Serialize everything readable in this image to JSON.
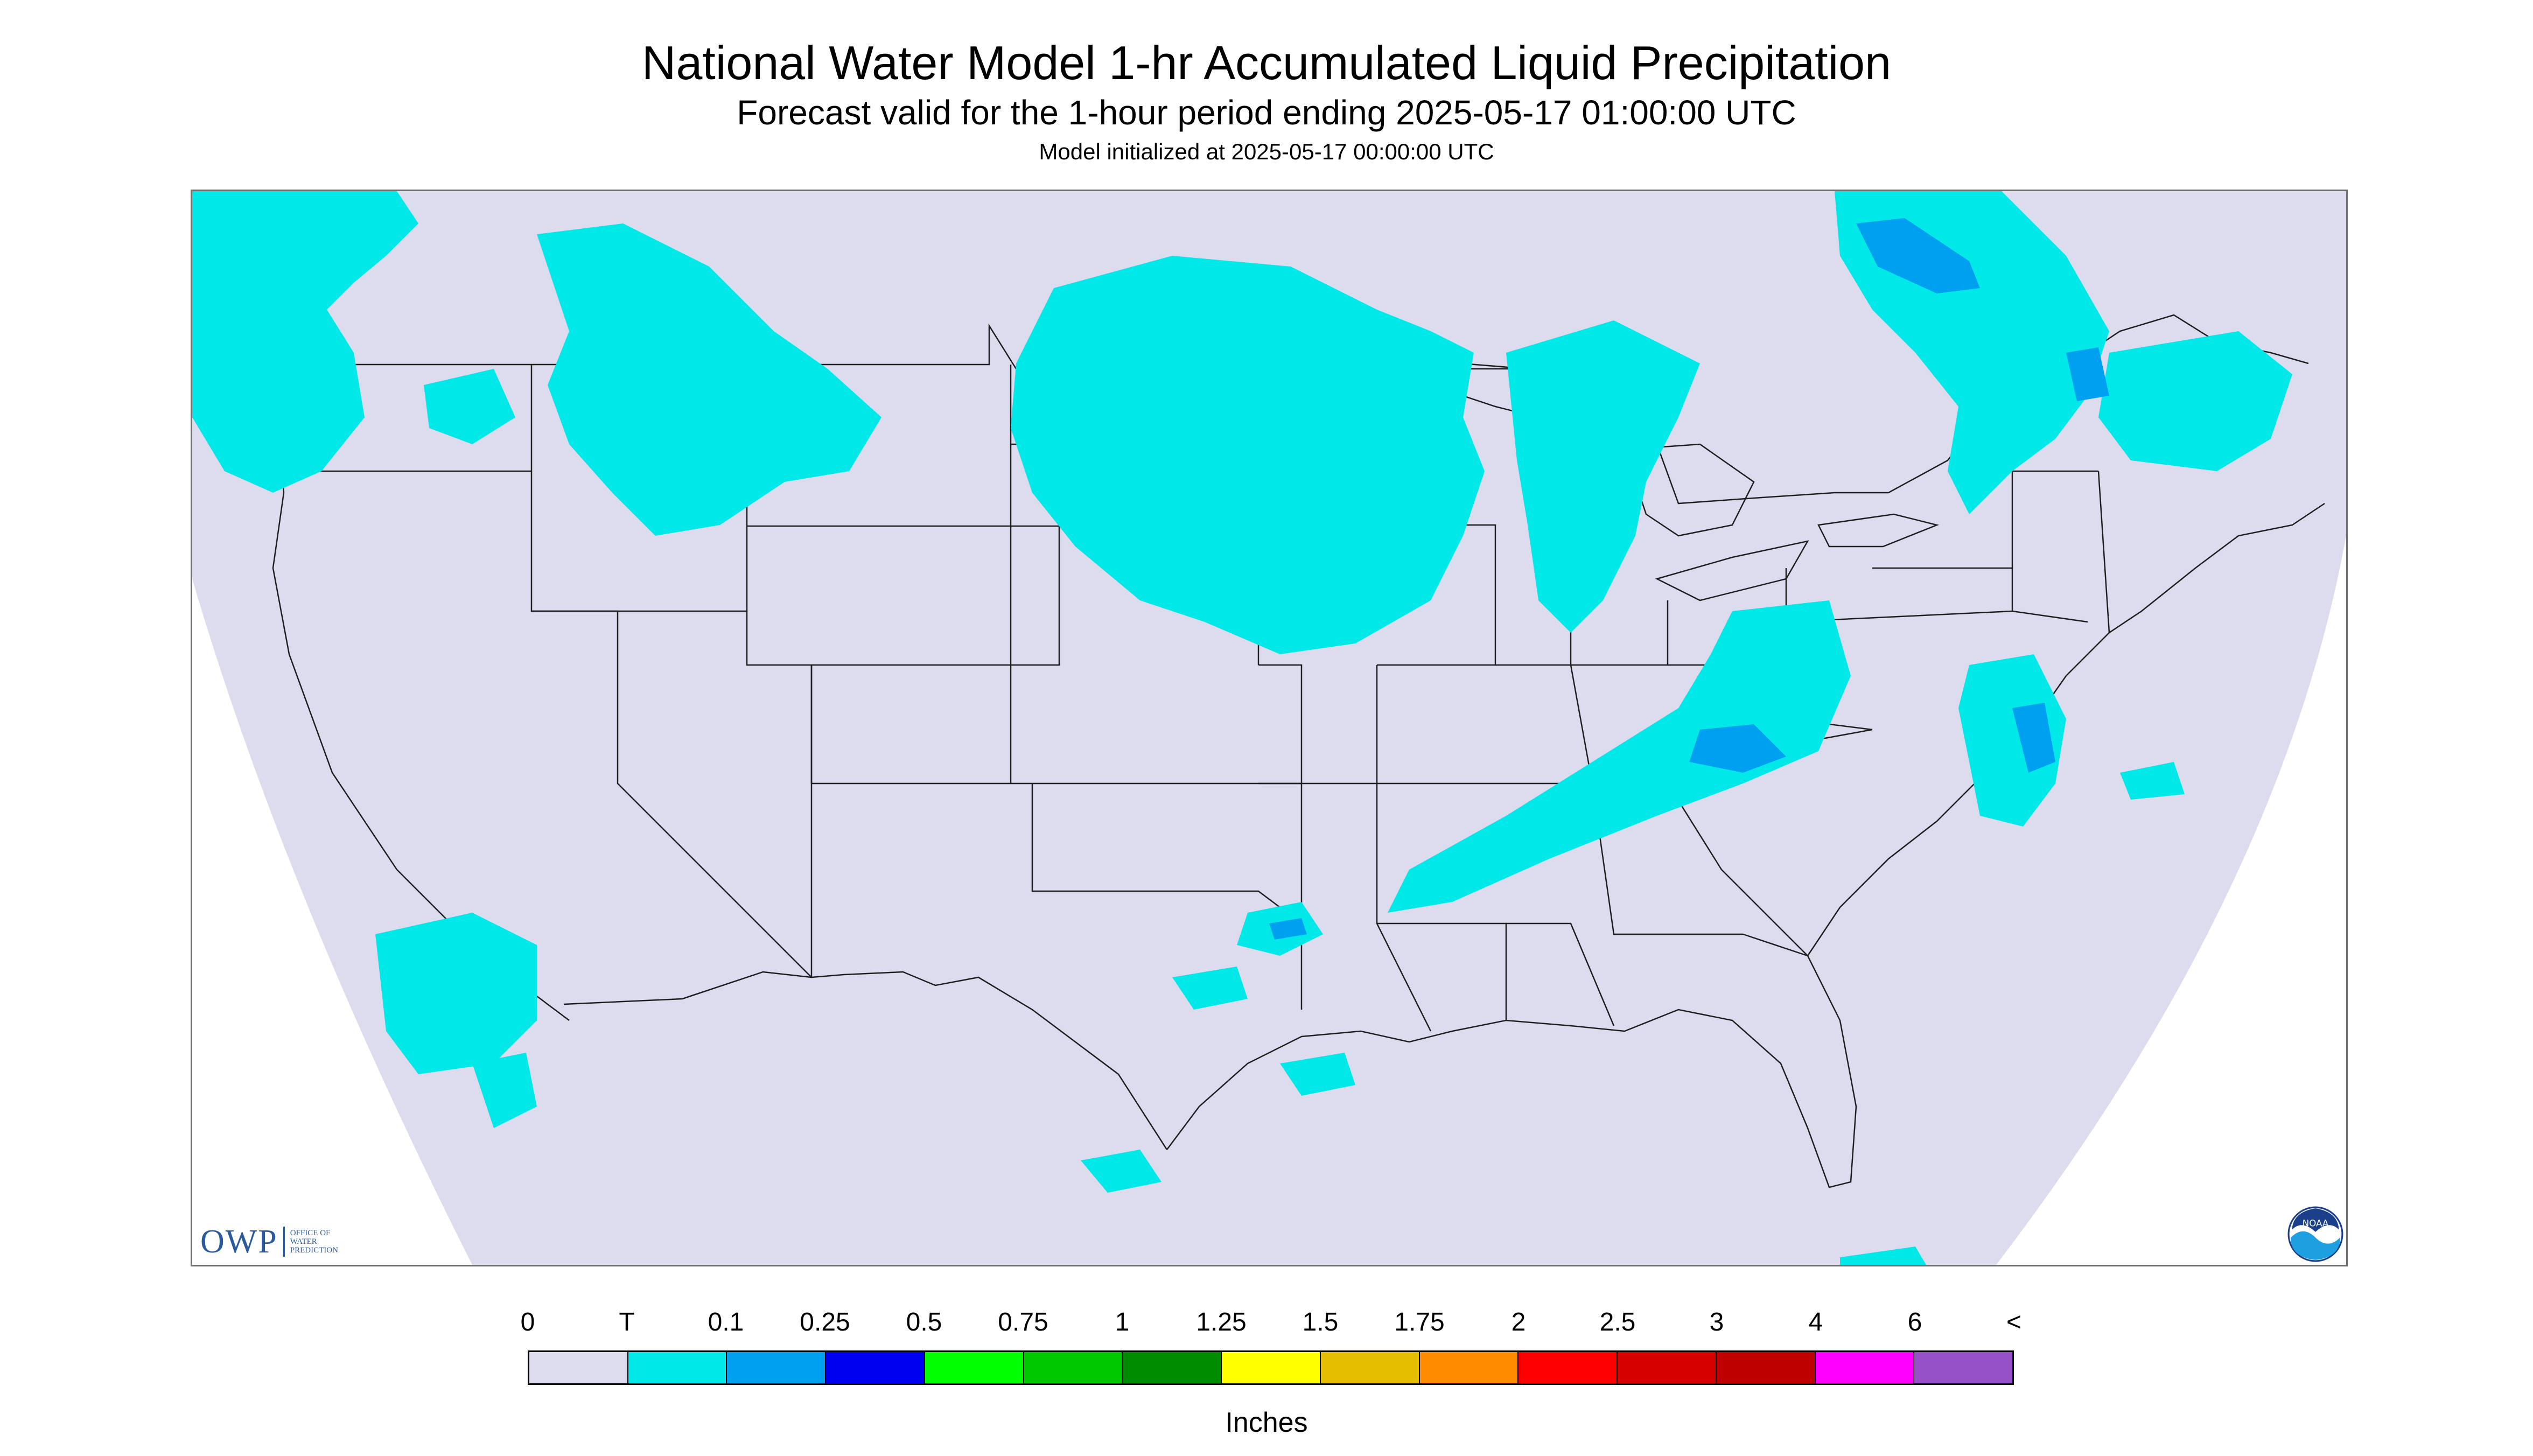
{
  "header": {
    "title": "National Water Model 1-hr Accumulated Liquid Precipitation",
    "subtitle": "Forecast valid for the 1-hour period ending 2025-05-17 01:00:00 UTC",
    "init_line": "Model initialized at 2025-05-17 00:00:00 UTC"
  },
  "map": {
    "land_color": "#dcdcee",
    "outside_color": "#ffffff",
    "border_color": "#1e1e1e",
    "precip_trace_color": "#00e8e8"
  },
  "logos": {
    "owp_text": "OWP",
    "owp_sub": "OFFICE OF\nWATER\nPREDICTION",
    "noaa_text": "NOAA"
  },
  "legend": {
    "tick_labels": [
      "0",
      "T",
      "0.1",
      "0.25",
      "0.5",
      "0.75",
      "1",
      "1.25",
      "1.5",
      "1.75",
      "2",
      "2.5",
      "3",
      "4",
      "6",
      "<"
    ],
    "colors": [
      "#dcdcee",
      "#00e8e8",
      "#00a0f0",
      "#0000f0",
      "#00ff00",
      "#00c800",
      "#008c00",
      "#ffff00",
      "#e6be00",
      "#ff8c00",
      "#ff0000",
      "#d70000",
      "#be0000",
      "#ff00ff",
      "#9650c8"
    ],
    "unit_label": "Inches"
  }
}
